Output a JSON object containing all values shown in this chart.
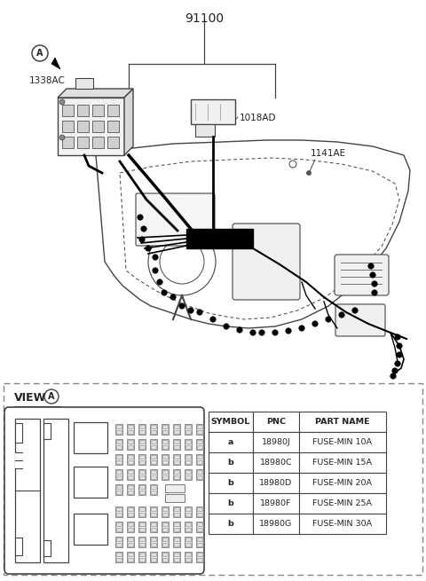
{
  "title": "91100",
  "bg_color": "#ffffff",
  "label_1338AC": "1338AC",
  "label_1018AD": "1018AD",
  "label_1141AE": "1141AE",
  "circle_A": "A",
  "table_headers": [
    "SYMBOL",
    "PNC",
    "PART NAME"
  ],
  "table_rows": [
    [
      "a",
      "18980J",
      "FUSE-MIN 10A"
    ],
    [
      "b",
      "18980C",
      "FUSE-MIN 15A"
    ],
    [
      "b",
      "18980D",
      "FUSE-MIN 20A"
    ],
    [
      "b",
      "18980F",
      "FUSE-MIN 25A"
    ],
    [
      "b",
      "18980G",
      "FUSE-MIN 30A"
    ]
  ],
  "lc": "#444444",
  "tc": "#222222",
  "gray1": "#c8c8c8",
  "gray2": "#e8e8e8",
  "gray3": "#aaaaaa"
}
